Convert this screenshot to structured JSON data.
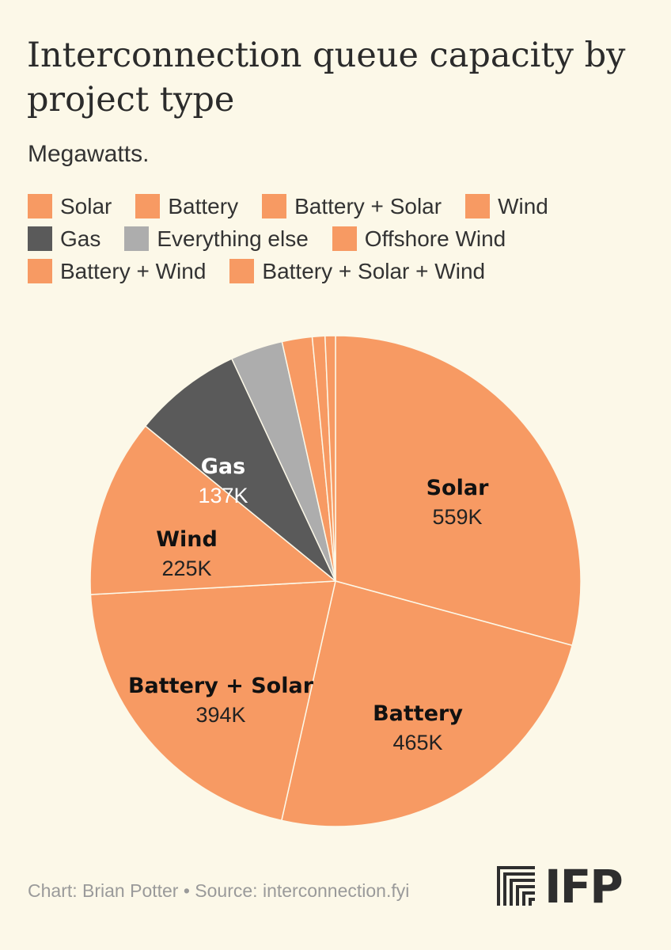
{
  "title": "Interconnection queue capacity by project type",
  "subtitle": "Megawatts.",
  "legend": [
    [
      {
        "label": "Solar",
        "color": "#f79a63"
      },
      {
        "label": "Battery",
        "color": "#f79a63"
      },
      {
        "label": "Battery + Solar",
        "color": "#f79a63"
      },
      {
        "label": "Wind",
        "color": "#f79a63"
      }
    ],
    [
      {
        "label": "Gas",
        "color": "#5a5a5a"
      },
      {
        "label": "Everything else",
        "color": "#adadad"
      },
      {
        "label": "Offshore Wind",
        "color": "#f79a63"
      }
    ],
    [
      {
        "label": "Battery + Wind",
        "color": "#f79a63"
      },
      {
        "label": "Battery + Solar + Wind",
        "color": "#f79a63"
      }
    ]
  ],
  "chart_data": {
    "type": "pie",
    "unit": "Megawatts",
    "slices": [
      {
        "name": "Solar",
        "value": 559000,
        "label": "559K",
        "color": "#f79a63"
      },
      {
        "name": "Battery",
        "value": 465000,
        "label": "465K",
        "color": "#f79a63"
      },
      {
        "name": "Battery + Solar",
        "value": 394000,
        "label": "394K",
        "color": "#f79a63"
      },
      {
        "name": "Wind",
        "value": 225000,
        "label": "225K",
        "color": "#f79a63"
      },
      {
        "name": "Gas",
        "value": 137000,
        "label": "137K",
        "color": "#5a5a5a"
      },
      {
        "name": "Everything else",
        "value": 66000,
        "label": "",
        "color": "#adadad"
      },
      {
        "name": "Offshore Wind",
        "value": 38000,
        "label": "",
        "color": "#f79a63"
      },
      {
        "name": "Battery + Wind",
        "value": 16000,
        "label": "",
        "color": "#f79a63"
      },
      {
        "name": "Battery + Solar + Wind",
        "value": 13000,
        "label": "",
        "color": "#f79a63"
      }
    ]
  },
  "footer": "Chart: Brian Potter • Source: interconnection.fyi",
  "logo_text": "IFP"
}
